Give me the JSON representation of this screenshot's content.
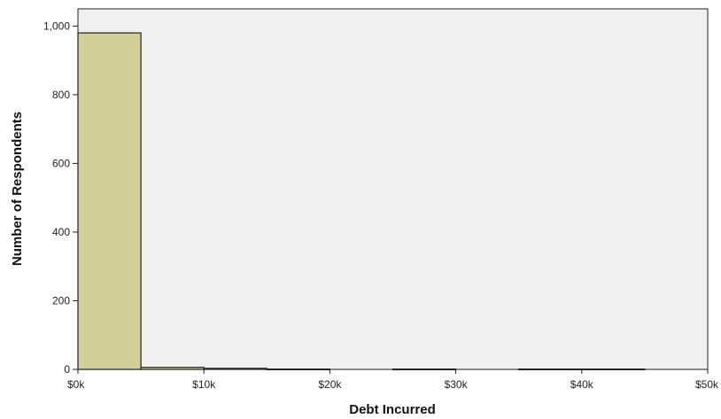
{
  "chart_data": {
    "type": "bar",
    "xlabel": "Debt Incurred",
    "ylabel": "Number of Respondents",
    "xlim": [
      0,
      50000
    ],
    "ylim": [
      0,
      1050
    ],
    "xticks": [
      {
        "value": 0,
        "label": "$0k"
      },
      {
        "value": 10000,
        "label": "$10k"
      },
      {
        "value": 20000,
        "label": "$20k"
      },
      {
        "value": 30000,
        "label": "$30k"
      },
      {
        "value": 40000,
        "label": "$40k"
      },
      {
        "value": 50000,
        "label": "$50k"
      }
    ],
    "yticks": [
      {
        "value": 0,
        "label": "0"
      },
      {
        "value": 200,
        "label": "200"
      },
      {
        "value": 400,
        "label": "400"
      },
      {
        "value": 600,
        "label": "600"
      },
      {
        "value": 800,
        "label": "800"
      },
      {
        "value": 1000,
        "label": "1,000"
      }
    ],
    "bins": [
      {
        "from": 0,
        "to": 5000,
        "count": 980
      },
      {
        "from": 5000,
        "to": 10000,
        "count": 6
      },
      {
        "from": 10000,
        "to": 15000,
        "count": 3
      },
      {
        "from": 15000,
        "to": 20000,
        "count": 1
      },
      {
        "from": 20000,
        "to": 25000,
        "count": 0
      },
      {
        "from": 25000,
        "to": 30000,
        "count": 1
      },
      {
        "from": 30000,
        "to": 35000,
        "count": 0
      },
      {
        "from": 35000,
        "to": 40000,
        "count": 1
      },
      {
        "from": 40000,
        "to": 45000,
        "count": 1
      },
      {
        "from": 45000,
        "to": 50000,
        "count": 0
      }
    ],
    "grid": false,
    "colors": {
      "bar_fill": "#d3cf98",
      "bar_stroke": "#222222",
      "plot_background": "#f0f0f0"
    }
  }
}
